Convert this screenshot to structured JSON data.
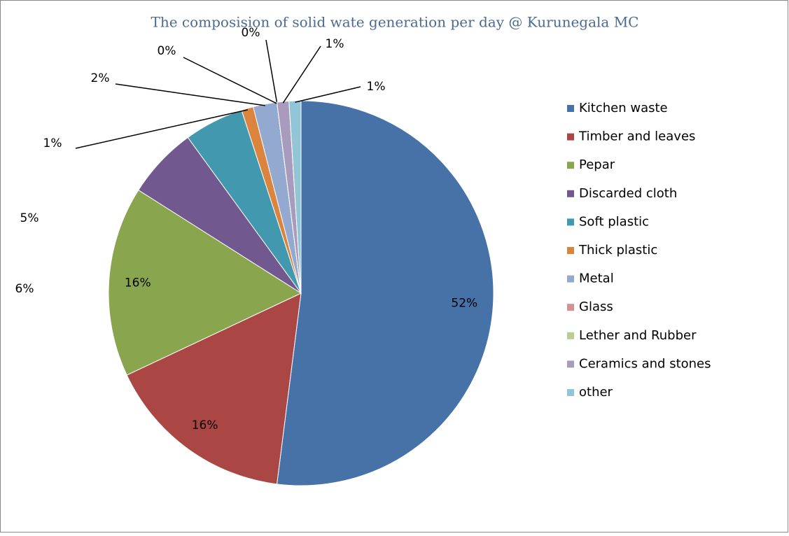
{
  "chart_data": {
    "type": "pie",
    "title": "The composision of solid wate generation per day @ Kurunegala MC",
    "categories": [
      "Kitchen waste",
      "Timber and leaves",
      "Pepar",
      "Discarded cloth",
      "Soft plastic",
      "Thick plastic",
      "Metal",
      "Glass",
      "Lether and Rubber",
      "Ceramics and stones",
      "other"
    ],
    "values": [
      52,
      16,
      16,
      6,
      5,
      1,
      2,
      0,
      0,
      1,
      1
    ],
    "value_labels": [
      "52%",
      "16%",
      "16%",
      "6%",
      "5%",
      "1%",
      "2%",
      "0%",
      "0%",
      "1%",
      "1%"
    ],
    "colors": [
      "#4672a8",
      "#aa4643",
      "#89a54e",
      "#71588f",
      "#4198af",
      "#db843d",
      "#93a9cf",
      "#d19392",
      "#b9cd96",
      "#a99bbd",
      "#92c5d6"
    ],
    "legend": "right"
  }
}
